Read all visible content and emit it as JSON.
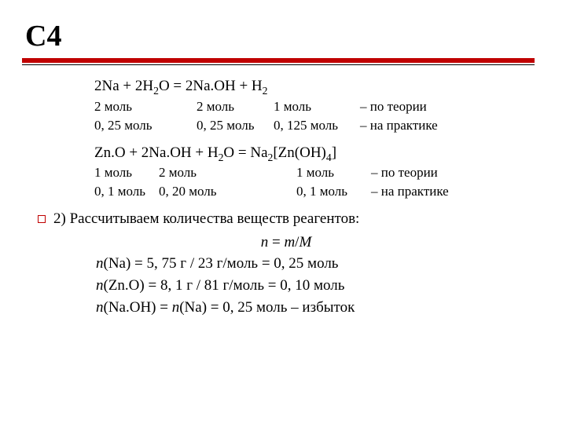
{
  "title": "С4",
  "accent_color": "#c00000",
  "font_family": "Times New Roman",
  "eq1": {
    "formula_html": "2Na + 2H₂O = 2Na.OH + H₂",
    "row1": {
      "c1": "2 моль",
      "c2": "2 моль",
      "c3": "1 моль",
      "c4": "– по теории"
    },
    "row2": {
      "c1": "0, 25 моль",
      "c2": "0, 25 моль",
      "c3": "0, 125 моль",
      "c4": "– на практике"
    }
  },
  "eq2": {
    "formula_html": "Zn.O + 2Na.OH + H₂O = Na₂[Zn(OH)₄]",
    "row1": {
      "c1": "1 моль",
      "c2": "2 моль",
      "c3": "1 моль",
      "c4": "– по теории"
    },
    "row2": {
      "c1": "0, 1 моль",
      "c2": "0, 20 моль",
      "c3": "0, 1 моль",
      "c4": "– на практике"
    }
  },
  "step2_intro": "2) Рассчитываем количества веществ реагентов:",
  "formula_n": "n = m/M",
  "line_na": "n(Na) = 5, 75 г / 23 г/моль = 0, 25 моль",
  "line_zno": "n(Zn.O) = 8, 1 г / 81 г/моль = 0, 10 моль",
  "line_naoh": "n(Na.OH) = n(Na) = 0, 25 моль – избыток"
}
